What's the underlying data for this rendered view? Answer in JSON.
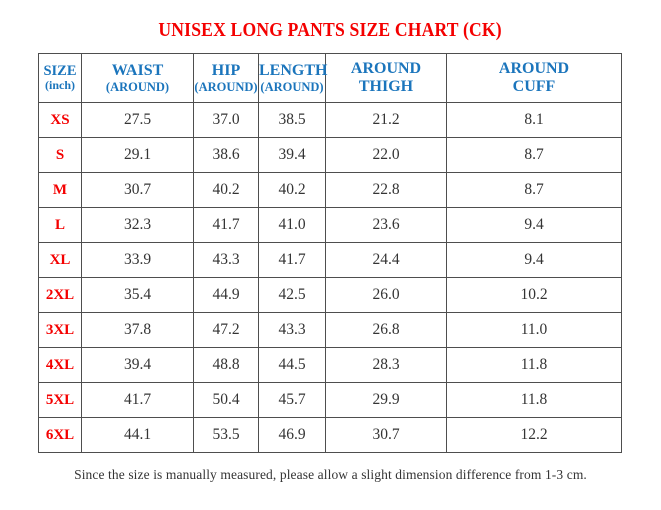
{
  "title": "UNISEX LONG PANTS SIZE CHART (CK)",
  "colors": {
    "title_red": "#f40000",
    "size_red": "#f40000",
    "header_blue": "#1b75bc",
    "value_dark": "#343434",
    "border_gray": "#4e4e4e"
  },
  "table": {
    "columns": [
      {
        "label": "SIZE",
        "sublabel": "(inch)"
      },
      {
        "label": "WAIST",
        "sublabel": "(AROUND)"
      },
      {
        "label": "HIP",
        "sublabel": "(AROUND)"
      },
      {
        "label": "LENGTH",
        "sublabel": "(AROUND)"
      },
      {
        "label": "AROUND",
        "sublabel": "THIGH"
      },
      {
        "label": "AROUND",
        "sublabel": "CUFF"
      }
    ],
    "rows": [
      {
        "size": "XS",
        "values": [
          "27.5",
          "37.0",
          "38.5",
          "21.2",
          "8.1"
        ]
      },
      {
        "size": "S",
        "values": [
          "29.1",
          "38.6",
          "39.4",
          "22.0",
          "8.7"
        ]
      },
      {
        "size": "M",
        "values": [
          "30.7",
          "40.2",
          "40.2",
          "22.8",
          "8.7"
        ]
      },
      {
        "size": "L",
        "values": [
          "32.3",
          "41.7",
          "41.0",
          "23.6",
          "9.4"
        ]
      },
      {
        "size": "XL",
        "values": [
          "33.9",
          "43.3",
          "41.7",
          "24.4",
          "9.4"
        ]
      },
      {
        "size": "2XL",
        "values": [
          "35.4",
          "44.9",
          "42.5",
          "26.0",
          "10.2"
        ]
      },
      {
        "size": "3XL",
        "values": [
          "37.8",
          "47.2",
          "43.3",
          "26.8",
          "11.0"
        ]
      },
      {
        "size": "4XL",
        "values": [
          "39.4",
          "48.8",
          "44.5",
          "28.3",
          "11.8"
        ]
      },
      {
        "size": "5XL",
        "values": [
          "41.7",
          "50.4",
          "45.7",
          "29.9",
          "11.8"
        ]
      },
      {
        "size": "6XL",
        "values": [
          "44.1",
          "53.5",
          "46.9",
          "30.7",
          "12.2"
        ]
      }
    ]
  },
  "footer": "Since the size is manually measured, please allow a slight dimension difference from 1-3 cm."
}
